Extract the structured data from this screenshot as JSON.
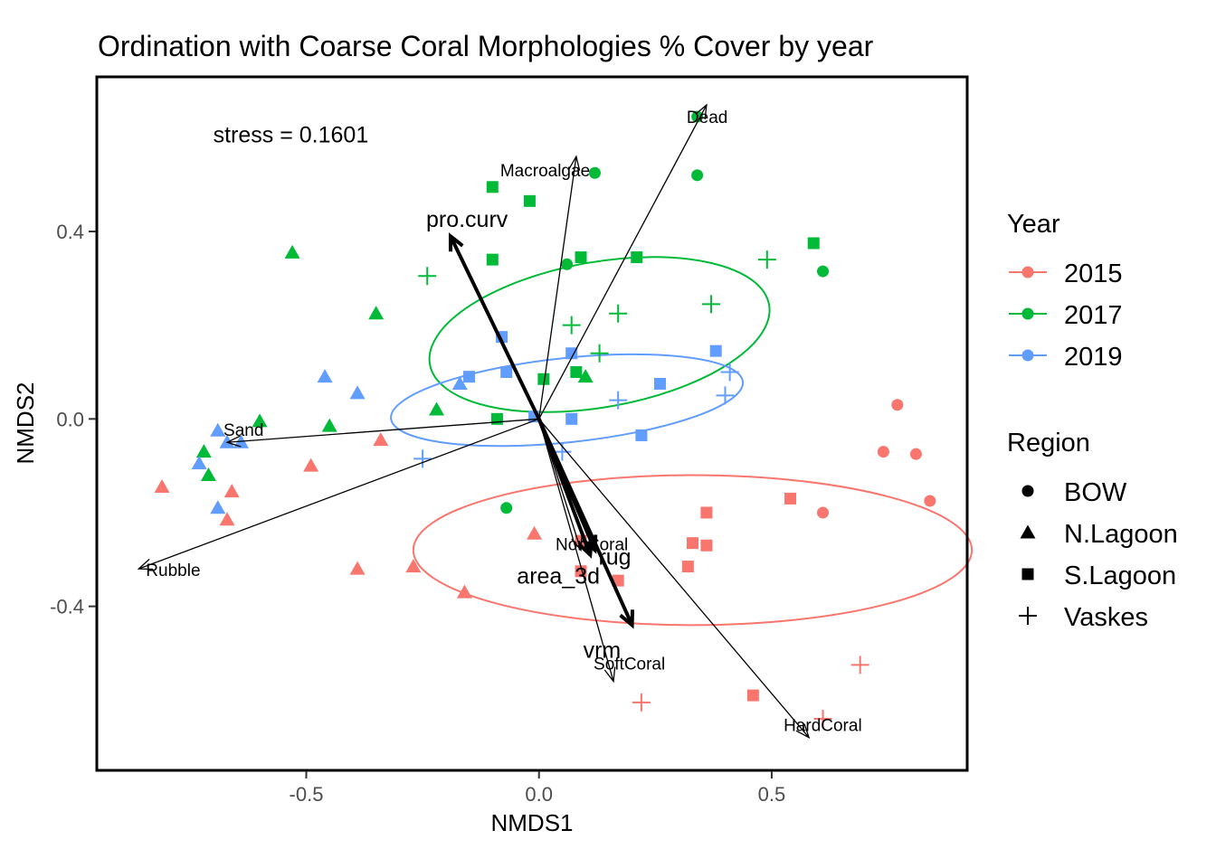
{
  "chart_data": {
    "type": "scatter",
    "title": "Ordination with Coarse Coral Morphologies % Cover by year",
    "xlabel": "NMDS1",
    "ylabel": "NMDS2",
    "xlim": [
      -0.95,
      0.92
    ],
    "ylim": [
      -0.75,
      0.73
    ],
    "x_ticks": [
      -0.5,
      0.0,
      0.5
    ],
    "x_tick_labels": [
      "-0.5",
      "0.0",
      "0.5"
    ],
    "y_ticks": [
      -0.4,
      0.0,
      0.4
    ],
    "y_tick_labels": [
      "-0.4",
      "0.0",
      "0.4"
    ],
    "grid": false,
    "annotation": "stress = 0.1601",
    "legend_position": "right",
    "year_legend": {
      "title": "Year",
      "entries": [
        {
          "label": "2015",
          "color": "#F8766D"
        },
        {
          "label": "2017",
          "color": "#00BA38"
        },
        {
          "label": "2019",
          "color": "#619CFF"
        }
      ]
    },
    "region_legend": {
      "title": "Region",
      "entries": [
        {
          "label": "BOW",
          "shape": "circle"
        },
        {
          "label": "N.Lagoon",
          "shape": "triangle"
        },
        {
          "label": "S.Lagoon",
          "shape": "square"
        },
        {
          "label": "Vaskes",
          "shape": "plus"
        }
      ]
    },
    "points": [
      {
        "year": "2015",
        "region": "BOW",
        "x": 0.77,
        "y": 0.03
      },
      {
        "year": "2015",
        "region": "BOW",
        "x": 0.74,
        "y": -0.07
      },
      {
        "year": "2015",
        "region": "BOW",
        "x": 0.81,
        "y": -0.075
      },
      {
        "year": "2015",
        "region": "BOW",
        "x": 0.84,
        "y": -0.175
      },
      {
        "year": "2015",
        "region": "BOW",
        "x": 0.61,
        "y": -0.2
      },
      {
        "year": "2015",
        "region": "N.Lagoon",
        "x": -0.81,
        "y": -0.145
      },
      {
        "year": "2015",
        "region": "N.Lagoon",
        "x": -0.66,
        "y": -0.155
      },
      {
        "year": "2015",
        "region": "N.Lagoon",
        "x": -0.67,
        "y": -0.215
      },
      {
        "year": "2015",
        "region": "N.Lagoon",
        "x": -0.49,
        "y": -0.1
      },
      {
        "year": "2015",
        "region": "N.Lagoon",
        "x": -0.34,
        "y": -0.045
      },
      {
        "year": "2015",
        "region": "N.Lagoon",
        "x": -0.39,
        "y": -0.32
      },
      {
        "year": "2015",
        "region": "N.Lagoon",
        "x": -0.27,
        "y": -0.315
      },
      {
        "year": "2015",
        "region": "N.Lagoon",
        "x": -0.16,
        "y": -0.37
      },
      {
        "year": "2015",
        "region": "N.Lagoon",
        "x": -0.01,
        "y": -0.245
      },
      {
        "year": "2015",
        "region": "S.Lagoon",
        "x": 0.54,
        "y": -0.17
      },
      {
        "year": "2015",
        "region": "S.Lagoon",
        "x": 0.36,
        "y": -0.2
      },
      {
        "year": "2015",
        "region": "S.Lagoon",
        "x": 0.33,
        "y": -0.265
      },
      {
        "year": "2015",
        "region": "S.Lagoon",
        "x": 0.36,
        "y": -0.27
      },
      {
        "year": "2015",
        "region": "S.Lagoon",
        "x": 0.32,
        "y": -0.315
      },
      {
        "year": "2015",
        "region": "S.Lagoon",
        "x": 0.09,
        "y": -0.26
      },
      {
        "year": "2015",
        "region": "S.Lagoon",
        "x": 0.09,
        "y": -0.325
      },
      {
        "year": "2015",
        "region": "S.Lagoon",
        "x": 0.17,
        "y": -0.345
      },
      {
        "year": "2015",
        "region": "S.Lagoon",
        "x": 0.46,
        "y": -0.59
      },
      {
        "year": "2015",
        "region": "Vaskes",
        "x": 0.69,
        "y": -0.525
      },
      {
        "year": "2015",
        "region": "Vaskes",
        "x": 0.22,
        "y": -0.605
      },
      {
        "year": "2015",
        "region": "Vaskes",
        "x": 0.61,
        "y": -0.64
      },
      {
        "year": "2017",
        "region": "BOW",
        "x": 0.34,
        "y": 0.645
      },
      {
        "year": "2017",
        "region": "BOW",
        "x": 0.34,
        "y": 0.52
      },
      {
        "year": "2017",
        "region": "BOW",
        "x": 0.12,
        "y": 0.525
      },
      {
        "year": "2017",
        "region": "BOW",
        "x": 0.06,
        "y": 0.33
      },
      {
        "year": "2017",
        "region": "BOW",
        "x": 0.61,
        "y": 0.315
      },
      {
        "year": "2017",
        "region": "BOW",
        "x": -0.07,
        "y": -0.19
      },
      {
        "year": "2017",
        "region": "N.Lagoon",
        "x": -0.53,
        "y": 0.355
      },
      {
        "year": "2017",
        "region": "N.Lagoon",
        "x": -0.35,
        "y": 0.225
      },
      {
        "year": "2017",
        "region": "N.Lagoon",
        "x": -0.6,
        "y": -0.005
      },
      {
        "year": "2017",
        "region": "N.Lagoon",
        "x": -0.45,
        "y": -0.015
      },
      {
        "year": "2017",
        "region": "N.Lagoon",
        "x": -0.22,
        "y": 0.02
      },
      {
        "year": "2017",
        "region": "N.Lagoon",
        "x": 0.1,
        "y": 0.09
      },
      {
        "year": "2017",
        "region": "N.Lagoon",
        "x": -0.72,
        "y": -0.07
      },
      {
        "year": "2017",
        "region": "N.Lagoon",
        "x": -0.71,
        "y": -0.12
      },
      {
        "year": "2017",
        "region": "S.Lagoon",
        "x": -0.1,
        "y": 0.495
      },
      {
        "year": "2017",
        "region": "S.Lagoon",
        "x": -0.02,
        "y": 0.465
      },
      {
        "year": "2017",
        "region": "S.Lagoon",
        "x": -0.1,
        "y": 0.34
      },
      {
        "year": "2017",
        "region": "S.Lagoon",
        "x": 0.09,
        "y": 0.345
      },
      {
        "year": "2017",
        "region": "S.Lagoon",
        "x": 0.21,
        "y": 0.345
      },
      {
        "year": "2017",
        "region": "S.Lagoon",
        "x": 0.59,
        "y": 0.375
      },
      {
        "year": "2017",
        "region": "S.Lagoon",
        "x": 0.01,
        "y": 0.085
      },
      {
        "year": "2017",
        "region": "S.Lagoon",
        "x": 0.08,
        "y": 0.1
      },
      {
        "year": "2017",
        "region": "S.Lagoon",
        "x": -0.09,
        "y": 0.0
      },
      {
        "year": "2017",
        "region": "Vaskes",
        "x": -0.24,
        "y": 0.305
      },
      {
        "year": "2017",
        "region": "Vaskes",
        "x": 0.49,
        "y": 0.34
      },
      {
        "year": "2017",
        "region": "Vaskes",
        "x": 0.37,
        "y": 0.245
      },
      {
        "year": "2017",
        "region": "Vaskes",
        "x": 0.17,
        "y": 0.225
      },
      {
        "year": "2017",
        "region": "Vaskes",
        "x": 0.07,
        "y": 0.2
      },
      {
        "year": "2017",
        "region": "Vaskes",
        "x": 0.13,
        "y": 0.14
      },
      {
        "year": "2019",
        "region": "N.Lagoon",
        "x": -0.46,
        "y": 0.09
      },
      {
        "year": "2019",
        "region": "N.Lagoon",
        "x": -0.39,
        "y": 0.055
      },
      {
        "year": "2019",
        "region": "N.Lagoon",
        "x": -0.17,
        "y": 0.075
      },
      {
        "year": "2019",
        "region": "N.Lagoon",
        "x": -0.69,
        "y": -0.025
      },
      {
        "year": "2019",
        "region": "N.Lagoon",
        "x": -0.67,
        "y": -0.05
      },
      {
        "year": "2019",
        "region": "N.Lagoon",
        "x": -0.64,
        "y": -0.05
      },
      {
        "year": "2019",
        "region": "N.Lagoon",
        "x": -0.73,
        "y": -0.095
      },
      {
        "year": "2019",
        "region": "N.Lagoon",
        "x": -0.69,
        "y": -0.19
      },
      {
        "year": "2019",
        "region": "S.Lagoon",
        "x": -0.08,
        "y": 0.175
      },
      {
        "year": "2019",
        "region": "S.Lagoon",
        "x": 0.38,
        "y": 0.145
      },
      {
        "year": "2019",
        "region": "S.Lagoon",
        "x": 0.07,
        "y": 0.14
      },
      {
        "year": "2019",
        "region": "S.Lagoon",
        "x": -0.15,
        "y": 0.09
      },
      {
        "year": "2019",
        "region": "S.Lagoon",
        "x": -0.07,
        "y": 0.1
      },
      {
        "year": "2019",
        "region": "S.Lagoon",
        "x": 0.26,
        "y": 0.075
      },
      {
        "year": "2019",
        "region": "S.Lagoon",
        "x": 0.07,
        "y": 0.0
      },
      {
        "year": "2019",
        "region": "S.Lagoon",
        "x": 0.22,
        "y": -0.035
      },
      {
        "year": "2019",
        "region": "S.Lagoon",
        "x": -0.01,
        "y": 0.005
      },
      {
        "year": "2019",
        "region": "Vaskes",
        "x": 0.41,
        "y": 0.1
      },
      {
        "year": "2019",
        "region": "Vaskes",
        "x": 0.4,
        "y": 0.05
      },
      {
        "year": "2019",
        "region": "Vaskes",
        "x": 0.17,
        "y": 0.04
      },
      {
        "year": "2019",
        "region": "Vaskes",
        "x": -0.25,
        "y": -0.085
      },
      {
        "year": "2019",
        "region": "Vaskes",
        "x": 0.05,
        "y": -0.07
      }
    ],
    "ellipses": [
      {
        "year": "2015",
        "cx": 0.33,
        "cy": -0.28,
        "rx": 0.6,
        "ry": 0.16,
        "angle": 0
      },
      {
        "year": "2017",
        "cx": 0.13,
        "cy": 0.18,
        "rx": 0.37,
        "ry": 0.155,
        "angle": 10
      },
      {
        "year": "2019",
        "cx": 0.06,
        "cy": 0.04,
        "rx": 0.38,
        "ry": 0.09,
        "angle": 6
      }
    ],
    "species_vectors": [
      {
        "label": "Dead",
        "x": 0.36,
        "y": 0.67
      },
      {
        "label": "Macroalgae",
        "x": 0.08,
        "y": 0.56
      },
      {
        "label": "Sand",
        "x": -0.67,
        "y": -0.05
      },
      {
        "label": "Rubble",
        "x": -0.86,
        "y": -0.32
      },
      {
        "label": "NonCoral",
        "x": 0.09,
        "y": -0.28
      },
      {
        "label": "SoftCoral",
        "x": 0.16,
        "y": -0.56
      },
      {
        "label": "HardCoral",
        "x": 0.58,
        "y": -0.68
      }
    ],
    "env_vectors": [
      {
        "label": "pro.curv",
        "x": -0.19,
        "y": 0.39
      },
      {
        "label": "rug",
        "x": 0.12,
        "y": -0.28
      },
      {
        "label": "area_3d",
        "x": 0.11,
        "y": -0.29
      },
      {
        "label": "vrm",
        "x": 0.2,
        "y": -0.44
      }
    ]
  }
}
